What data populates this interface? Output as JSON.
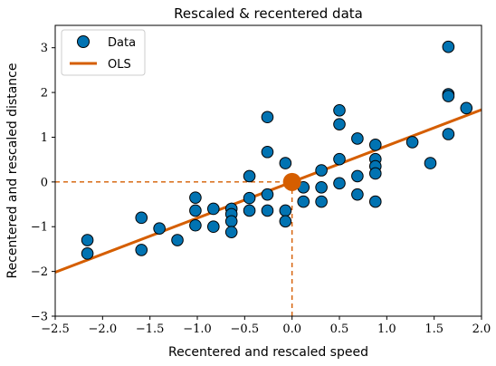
{
  "chart_data": {
    "type": "scatter",
    "title": "Rescaled & recentered data",
    "xlabel": "Recentered and rescaled speed",
    "ylabel": "Recentered and rescaled distance",
    "xlim": [
      -2.5,
      2.0
    ],
    "ylim": [
      -3,
      3.5
    ],
    "xticks": [
      -2.5,
      -2.0,
      -1.5,
      -1.0,
      -0.5,
      0.0,
      0.5,
      1.0,
      1.5,
      2.0
    ],
    "xtick_labels": [
      "−2.5",
      "−2.0",
      "−1.5",
      "−1.0",
      "−0.5",
      "0.0",
      "0.5",
      "1.0",
      "1.5",
      "2.0"
    ],
    "yticks": [
      -3,
      -2,
      -1,
      0,
      1,
      2,
      3
    ],
    "ytick_labels": [
      "−3",
      "−2",
      "−1",
      "0",
      "1",
      "2",
      "3"
    ],
    "grid": false,
    "legend_position": "top-left",
    "colors": {
      "data": "#0173b2",
      "ols": "#d55e00"
    },
    "series": [
      {
        "name": "Data",
        "kind": "points",
        "points": [
          [
            -2.16,
            -1.3
          ],
          [
            -2.16,
            -1.6
          ],
          [
            -1.59,
            -0.8
          ],
          [
            -1.59,
            -1.52
          ],
          [
            -1.4,
            -1.04
          ],
          [
            -1.21,
            -1.3
          ],
          [
            -1.02,
            -0.35
          ],
          [
            -1.02,
            -0.64
          ],
          [
            -1.02,
            -0.97
          ],
          [
            -0.83,
            -0.6
          ],
          [
            -0.83,
            -1.0
          ],
          [
            -0.64,
            -0.6
          ],
          [
            -0.64,
            -0.72
          ],
          [
            -0.64,
            -0.88
          ],
          [
            -0.64,
            -1.12
          ],
          [
            -0.45,
            0.13
          ],
          [
            -0.45,
            -0.36
          ],
          [
            -0.45,
            -0.64
          ],
          [
            -0.26,
            1.45
          ],
          [
            -0.26,
            0.67
          ],
          [
            -0.26,
            -0.28
          ],
          [
            -0.26,
            -0.64
          ],
          [
            -0.07,
            0.42
          ],
          [
            -0.07,
            -0.64
          ],
          [
            -0.07,
            -0.88
          ],
          [
            0.12,
            -0.12
          ],
          [
            0.12,
            -0.44
          ],
          [
            0.31,
            0.26
          ],
          [
            0.31,
            -0.12
          ],
          [
            0.31,
            -0.44
          ],
          [
            0.5,
            1.6
          ],
          [
            0.5,
            1.29
          ],
          [
            0.5,
            0.51
          ],
          [
            0.5,
            -0.03
          ],
          [
            0.69,
            0.97
          ],
          [
            0.69,
            0.13
          ],
          [
            0.69,
            -0.28
          ],
          [
            0.88,
            0.83
          ],
          [
            0.88,
            0.51
          ],
          [
            0.88,
            0.35
          ],
          [
            0.88,
            0.19
          ],
          [
            0.88,
            -0.44
          ],
          [
            1.27,
            0.89
          ],
          [
            1.46,
            0.42
          ],
          [
            1.65,
            3.02
          ],
          [
            1.65,
            1.96
          ],
          [
            1.65,
            1.92
          ],
          [
            1.65,
            1.07
          ],
          [
            1.84,
            1.65
          ]
        ]
      },
      {
        "name": "OLS",
        "kind": "line",
        "intercept": 0.0,
        "slope": 0.807
      }
    ],
    "centroid": [
      0.0,
      0.0
    ]
  }
}
